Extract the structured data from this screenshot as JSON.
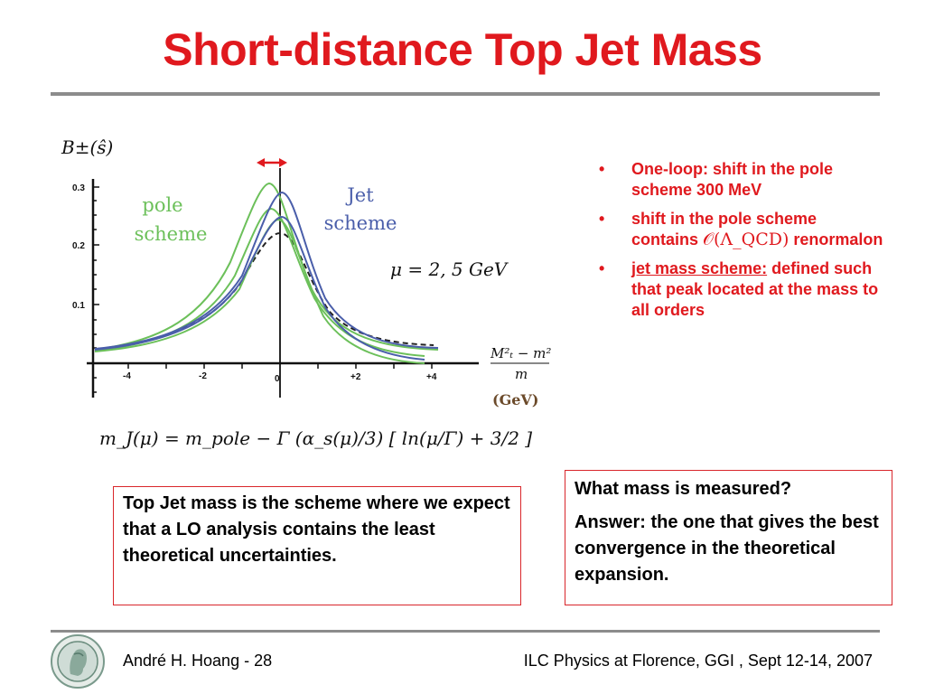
{
  "title": "Short-distance Top Jet Mass",
  "figure": {
    "ylabel": "B±(ŝ)",
    "y_ticks": [
      "0.3",
      "0.2",
      "0.1"
    ],
    "x_ticks": [
      "-4",
      "-2",
      "0",
      "+2",
      "+4"
    ],
    "pole_label_line1": "pole",
    "pole_label_line2": "scheme",
    "jet_label_line1": "Jet",
    "jet_label_line2": "scheme",
    "mu_label": "μ = 2, 5 GeV",
    "x_axis_num": "M²ₜ − m²",
    "x_axis_den": "m",
    "x_axis_unit": "(GeV)",
    "formula": "m_J(μ) = m_pole − Γ (α_s(μ)/3) [ ln(μ/Γ) + 3/2 ]",
    "colors": {
      "pole": "#6cc05a",
      "jet": "#4a5eaa",
      "dashed": "#222222",
      "arrow": "#e0191e"
    }
  },
  "bullets": [
    {
      "text": "One-loop: shift in the pole scheme 300 MeV"
    },
    {
      "pre": "shift in the pole scheme contains ",
      "math": "𝒪(Λ_QCD)",
      "post": " renormalon"
    },
    {
      "underline": "jet mass scheme:",
      "post": " defined such that peak located at the mass to all orders"
    }
  ],
  "box_left": "Top Jet mass is the scheme where we expect that a LO analysis contains the least theoretical uncertainties.",
  "box_right_q": "What mass is measured?",
  "box_right_a": "Answer: the one that gives the best convergence in the theoretical expansion.",
  "footer": {
    "author": "André H. Hoang  - 28",
    "event": "ILC Physics at Florence, GGI , Sept 12-14, 2007"
  }
}
